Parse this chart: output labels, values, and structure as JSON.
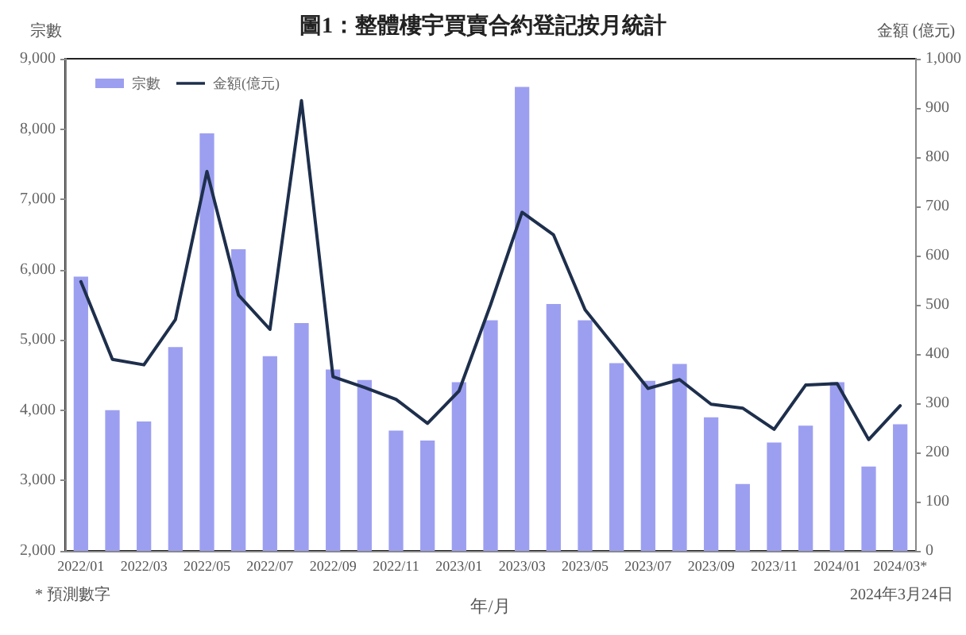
{
  "chart_data": {
    "type": "bar",
    "title": "圖1：整體樓宇買賣合約登記按月統計",
    "xlabel": "年/月",
    "ylabel": "宗數",
    "y2label": "金額 (億元)",
    "categories": [
      "2022/01",
      null,
      "2022/03",
      null,
      "2022/05",
      null,
      "2022/07",
      null,
      "2022/09",
      null,
      "2022/11",
      null,
      "2023/01",
      null,
      "2023/03",
      null,
      "2023/05",
      null,
      "2023/07",
      null,
      "2023/09",
      null,
      "2023/11",
      null,
      "2024/01",
      null,
      "2024/03*"
    ],
    "series": [
      {
        "name": "宗數",
        "color": "#9c9ff0",
        "values": [
          5900,
          4000,
          3840,
          4900,
          7940,
          6290,
          4770,
          5240,
          4580,
          4430,
          3710,
          3570,
          4400,
          5280,
          8600,
          5510,
          5280,
          4670,
          4420,
          4660,
          3900,
          2950,
          3540,
          3780,
          4400,
          3200,
          3800
        ]
      },
      {
        "name": "金額(億元)",
        "type": "line",
        "axis": "y2",
        "color": "#1e2f4c",
        "values": [
          547,
          389,
          378,
          470,
          771,
          520,
          450,
          915,
          354,
          332,
          308,
          259,
          325,
          500,
          688,
          642,
          490,
          410,
          330,
          348,
          298,
          290,
          247,
          337,
          340,
          226,
          295
        ]
      }
    ],
    "ylim": [
      2000,
      9000
    ],
    "yticks": [
      {
        "value": 2000,
        "label": "2,000"
      },
      {
        "value": 3000,
        "label": "3,000"
      },
      {
        "value": 4000,
        "label": "4,000"
      },
      {
        "value": 5000,
        "label": "5,000"
      },
      {
        "value": 6000,
        "label": "6,000"
      },
      {
        "value": 7000,
        "label": "7,000"
      },
      {
        "value": 8000,
        "label": "8,000"
      },
      {
        "value": 9000,
        "label": "9,000"
      }
    ],
    "y2lim": [
      0,
      1000
    ],
    "y2ticks": [
      0,
      100,
      200,
      300,
      400,
      500,
      600,
      700,
      800,
      900,
      {
        "value": 1000,
        "label": "1,000"
      }
    ],
    "legend": "top left",
    "marker": "none",
    "line_style": "solid",
    "annotations": [
      "* 預測數字",
      "2024年3月24日"
    ]
  }
}
